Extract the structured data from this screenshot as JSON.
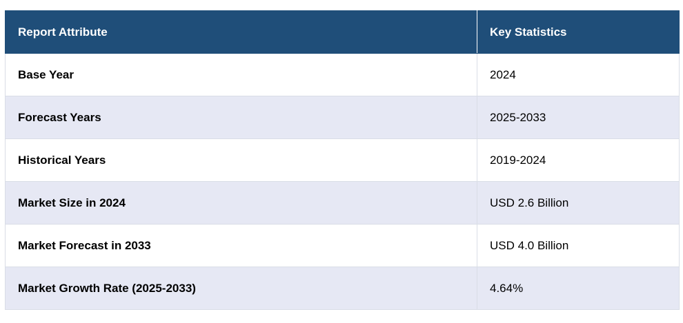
{
  "header": {
    "col1": "Report Attribute",
    "col2": "Key Statistics"
  },
  "rows": [
    {
      "attribute": "Base Year",
      "value": "2024"
    },
    {
      "attribute": "Forecast Years",
      "value": "2025-2033"
    },
    {
      "attribute": "Historical Years",
      "value": "2019-2024"
    },
    {
      "attribute": "Market Size in 2024",
      "value": "USD 2.6 Billion"
    },
    {
      "attribute": "Market Forecast in 2033",
      "value": "USD 4.0 Billion"
    },
    {
      "attribute": "Market Growth Rate (2025-2033)",
      "value": "4.64%"
    }
  ],
  "colors": {
    "header_bg": "#1f4e79",
    "stripe_bg": "#e6e8f4"
  }
}
